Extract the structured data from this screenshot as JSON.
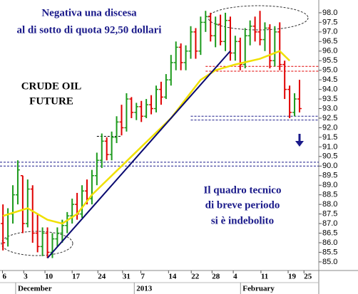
{
  "chart_data": {
    "type": "ohlc",
    "annotations": [
      "Negativa una discesa",
      "al di sotto di quota 92,50 dollari",
      "CRUDE OIL",
      "FUTURE",
      "Il quadro tecnico",
      "di breve periodo",
      "si è indebolito"
    ],
    "months": [
      {
        "value": 3,
        "label": "December"
      },
      {
        "value": 27,
        "label": "2013"
      },
      {
        "value": 48.5,
        "label": "February"
      }
    ],
    "x": [
      0,
      1,
      2,
      3,
      4,
      5,
      6,
      7,
      8,
      9,
      10,
      11,
      12,
      13,
      14,
      15,
      16,
      17,
      18,
      19,
      20,
      21,
      22,
      23,
      24,
      25,
      26,
      27,
      28,
      29,
      30,
      31,
      32,
      33,
      34,
      35,
      36,
      37,
      38,
      39,
      40,
      41,
      42,
      43,
      44,
      45,
      46,
      47,
      48,
      49,
      50,
      51,
      52,
      53,
      54,
      55,
      56,
      57,
      58,
      59,
      60
    ],
    "open": [
      87.0,
      86.2,
      87.5,
      88.5,
      89.5,
      87.0,
      88.8,
      86.5,
      85.8,
      86.5,
      85.5,
      86.2,
      86.5,
      86.9,
      87.4,
      88.0,
      87.5,
      88.7,
      88.3,
      89.5,
      90.3,
      91.3,
      90.6,
      91.5,
      92.3,
      92.0,
      93.5,
      92.8,
      93.1,
      92.6,
      93.2,
      93.0,
      94.0,
      93.6,
      94.5,
      95.4,
      96.2,
      95.4,
      96.0,
      97.0,
      96.0,
      97.5,
      97.8,
      96.8,
      97.4,
      96.5,
      97.6,
      95.9,
      96.5,
      95.3,
      96.8,
      97.3,
      97.0,
      96.6,
      97.2,
      95.5,
      97.0,
      95.3,
      94.0,
      92.8,
      93.5
    ],
    "high": [
      88.0,
      87.8,
      89.0,
      90.3,
      89.5,
      89.3,
      89.0,
      87.5,
      86.8,
      86.8,
      86.5,
      86.8,
      87.2,
      87.6,
      88.3,
      88.6,
      89.0,
      89.3,
      89.8,
      90.7,
      91.7,
      91.5,
      91.8,
      92.6,
      93.2,
      93.8,
      93.6,
      93.3,
      93.4,
      93.5,
      93.7,
      94.2,
      94.4,
      94.8,
      95.8,
      96.5,
      96.4,
      96.3,
      97.3,
      97.2,
      97.8,
      98.1,
      98.0,
      97.8,
      97.9,
      98.0,
      97.8,
      96.8,
      96.7,
      97.2,
      97.6,
      97.8,
      98.1,
      97.5,
      97.4,
      97.3,
      97.5,
      95.5,
      94.2,
      93.8,
      94.5
    ],
    "low": [
      85.6,
      85.8,
      87.0,
      88.0,
      86.5,
      86.8,
      86.0,
      85.5,
      85.3,
      85.2,
      85.2,
      85.8,
      86.0,
      86.5,
      87.0,
      87.2,
      87.3,
      88.0,
      88.0,
      89.0,
      89.9,
      90.3,
      90.3,
      91.2,
      91.6,
      91.8,
      92.5,
      92.4,
      92.3,
      92.5,
      92.7,
      92.8,
      93.2,
      93.5,
      94.2,
      95.0,
      95.0,
      95.0,
      95.6,
      95.6,
      95.8,
      97.0,
      96.5,
      96.2,
      96.3,
      96.0,
      95.5,
      95.5,
      95.0,
      95.1,
      96.3,
      96.5,
      96.3,
      96.0,
      95.1,
      95.2,
      95.0,
      93.5,
      92.5,
      92.6,
      92.8
    ],
    "close": [
      86.0,
      87.5,
      88.5,
      89.8,
      87.0,
      88.8,
      86.5,
      85.8,
      86.5,
      85.5,
      86.2,
      86.5,
      86.9,
      87.4,
      88.0,
      87.5,
      88.7,
      88.3,
      89.5,
      90.3,
      91.3,
      90.6,
      91.5,
      92.3,
      92.0,
      93.5,
      92.8,
      93.1,
      92.6,
      93.2,
      93.0,
      94.0,
      93.6,
      94.5,
      95.4,
      96.2,
      95.4,
      96.0,
      97.0,
      96.0,
      97.5,
      97.8,
      96.8,
      97.4,
      96.5,
      97.6,
      95.9,
      96.5,
      95.3,
      96.8,
      97.3,
      97.0,
      96.6,
      97.2,
      95.5,
      97.0,
      95.3,
      94.0,
      92.8,
      93.5,
      93.0
    ],
    "up_color": "#1c9a1c",
    "down_color": "#e00000",
    "ma": {
      "color": "#f0e000",
      "x": [
        0,
        5,
        9,
        12,
        15,
        18,
        22,
        26,
        30,
        34,
        37,
        40,
        43,
        47,
        52,
        56,
        58
      ],
      "values": [
        87.4,
        87.8,
        87.2,
        87.0,
        87.5,
        88.5,
        89.5,
        90.5,
        91.5,
        92.5,
        93.5,
        94.5,
        95.0,
        95.3,
        95.6,
        96.0,
        95.5
      ]
    },
    "trendline": {
      "color": "#0a0a70",
      "x": [
        9,
        46
      ],
      "values": [
        85.2,
        96.0
      ]
    },
    "levels": [
      {
        "value": 92.6,
        "x0": 38,
        "x1": 63.9,
        "color": "#1a1a8a"
      },
      {
        "value": 92.4,
        "x0": 38,
        "x1": 63.9,
        "color": "#1a1a8a"
      },
      {
        "value": 90.2,
        "x0": -0.6,
        "x1": 63.9,
        "color": "#1a1a8a"
      },
      {
        "value": 90.0,
        "x0": -0.6,
        "x1": 63.9,
        "color": "#1a1a8a"
      },
      {
        "value": 95.2,
        "x0": 41,
        "x1": 63.9,
        "color": "#e00000"
      },
      {
        "value": 94.95,
        "x0": 41,
        "x1": 63.9,
        "color": "#e00000"
      },
      {
        "value": 91.55,
        "x0": 19,
        "x1": 24,
        "color": "#000000"
      }
    ],
    "xlim": [
      -0.6,
      63.9
    ],
    "ylim": [
      84.55,
      98.48
    ],
    "xticks": [
      {
        "value": -0.1,
        "label": "6"
      },
      {
        "value": 4.2,
        "label": "3"
      },
      {
        "value": 8.5,
        "label": "10"
      },
      {
        "value": 14,
        "label": "17"
      },
      {
        "value": 19.2,
        "label": "24"
      },
      {
        "value": 24.2,
        "label": "31"
      },
      {
        "value": 27.9,
        "label": "7"
      },
      {
        "value": 33.5,
        "label": "14"
      },
      {
        "value": 38.1,
        "label": "22"
      },
      {
        "value": 42.3,
        "label": "28"
      },
      {
        "value": 46.6,
        "label": "4"
      },
      {
        "value": 52.2,
        "label": "11"
      },
      {
        "value": 57.7,
        "label": "19"
      },
      {
        "value": 60.9,
        "label": "25"
      }
    ],
    "yticks": [
      {
        "value": 85,
        "label": "85.0"
      },
      85.5,
      {
        "value": 86,
        "label": "86.0"
      },
      86.5,
      {
        "value": 87,
        "label": "87.0"
      },
      87.5,
      {
        "value": 88,
        "label": "88.0"
      },
      88.5,
      {
        "value": 89,
        "label": "89.0"
      },
      89.5,
      {
        "value": 90,
        "label": "90.0"
      },
      90.5,
      {
        "value": 91,
        "label": "91.0"
      },
      91.5,
      {
        "value": 92,
        "label": "92.0"
      },
      92.5,
      {
        "value": 93,
        "label": "93.0"
      },
      93.5,
      {
        "value": 94,
        "label": "94.0"
      },
      94.5,
      {
        "value": 95,
        "label": "95.0"
      },
      95.5,
      {
        "value": 96,
        "label": "96.0"
      },
      96.5,
      {
        "value": 97,
        "label": "97.0"
      },
      97.5,
      {
        "value": 98,
        "label": "98.0"
      }
    ]
  }
}
